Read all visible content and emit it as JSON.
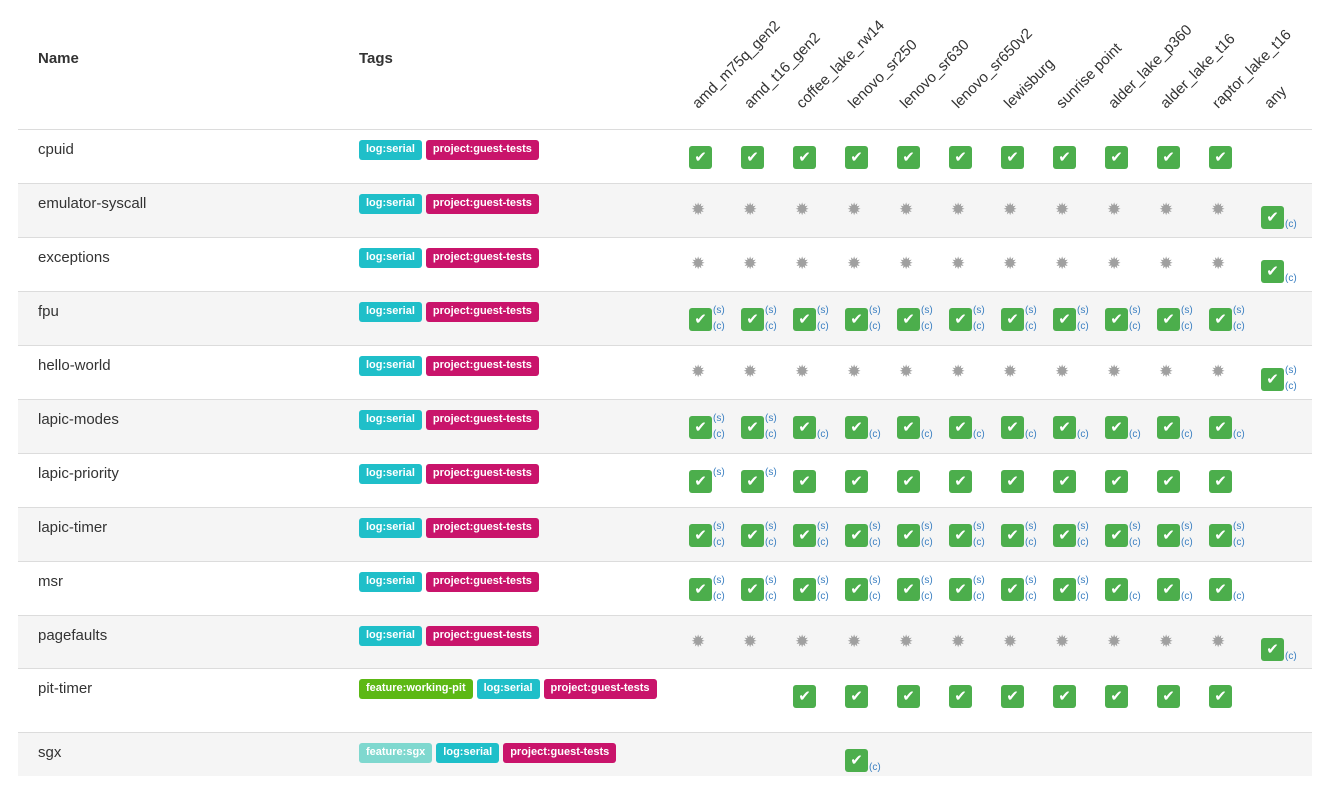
{
  "header": {
    "name_label": "Name",
    "tags_label": "Tags"
  },
  "machines": [
    "amd_m75q_gen2",
    "amd_t16_gen2",
    "coffee_lake_rw14",
    "lenovo_sr250",
    "lenovo_sr630",
    "lenovo_sr650v2",
    "lewisburg",
    "sunrise point",
    "alder_lake_p360",
    "alder_lake_t16",
    "raptor_lake_t16",
    "any"
  ],
  "tag_colors": {
    "log:serial": "#1fbfc9",
    "project:guest-tests": "#c9146b",
    "feature:working-pit": "#5cb814",
    "feature:sgx": "#7fd8cf"
  },
  "icons": {
    "check": "checkmark-icon",
    "gear": "gear-icon"
  },
  "status_legend": {
    "ok": "checked",
    "skip": "gear",
    "none": "empty"
  },
  "rows": [
    {
      "name": "cpuid",
      "tags": [
        "log:serial",
        "project:guest-tests"
      ],
      "cells": [
        "ok",
        "ok",
        "ok",
        "ok",
        "ok",
        "ok",
        "ok",
        "ok",
        "ok",
        "ok",
        "ok",
        "-"
      ]
    },
    {
      "name": "emulator-syscall",
      "tags": [
        "log:serial",
        "project:guest-tests"
      ],
      "cells": [
        "skip",
        "skip",
        "skip",
        "skip",
        "skip",
        "skip",
        "skip",
        "skip",
        "skip",
        "skip",
        "skip",
        "ok:c"
      ]
    },
    {
      "name": "exceptions",
      "tags": [
        "log:serial",
        "project:guest-tests"
      ],
      "cells": [
        "skip",
        "skip",
        "skip",
        "skip",
        "skip",
        "skip",
        "skip",
        "skip",
        "skip",
        "skip",
        "skip",
        "ok:c"
      ]
    },
    {
      "name": "fpu",
      "tags": [
        "log:serial",
        "project:guest-tests"
      ],
      "cells": [
        "ok:sc",
        "ok:sc",
        "ok:sc",
        "ok:sc",
        "ok:sc",
        "ok:sc",
        "ok:sc",
        "ok:sc",
        "ok:sc",
        "ok:sc",
        "ok:sc",
        "-"
      ]
    },
    {
      "name": "hello-world",
      "tags": [
        "log:serial",
        "project:guest-tests"
      ],
      "cells": [
        "skip",
        "skip",
        "skip",
        "skip",
        "skip",
        "skip",
        "skip",
        "skip",
        "skip",
        "skip",
        "skip",
        "ok:sc"
      ]
    },
    {
      "name": "lapic-modes",
      "tags": [
        "log:serial",
        "project:guest-tests"
      ],
      "cells": [
        "ok:sc",
        "ok:sc",
        "ok:c",
        "ok:c",
        "ok:c",
        "ok:c",
        "ok:c",
        "ok:c",
        "ok:c",
        "ok:c",
        "ok:c",
        "-"
      ]
    },
    {
      "name": "lapic-priority",
      "tags": [
        "log:serial",
        "project:guest-tests"
      ],
      "cells": [
        "ok:s",
        "ok:s",
        "ok",
        "ok",
        "ok",
        "ok",
        "ok",
        "ok",
        "ok",
        "ok",
        "ok",
        "-"
      ]
    },
    {
      "name": "lapic-timer",
      "tags": [
        "log:serial",
        "project:guest-tests"
      ],
      "cells": [
        "ok:sc",
        "ok:sc",
        "ok:sc",
        "ok:sc",
        "ok:sc",
        "ok:sc",
        "ok:sc",
        "ok:sc",
        "ok:sc",
        "ok:sc",
        "ok:sc",
        "-"
      ]
    },
    {
      "name": "msr",
      "tags": [
        "log:serial",
        "project:guest-tests"
      ],
      "cells": [
        "ok:sc",
        "ok:sc",
        "ok:sc",
        "ok:sc",
        "ok:sc",
        "ok:sc",
        "ok:sc",
        "ok:sc",
        "ok:c",
        "ok:c",
        "ok:c",
        "-"
      ]
    },
    {
      "name": "pagefaults",
      "tags": [
        "log:serial",
        "project:guest-tests"
      ],
      "cells": [
        "skip",
        "skip",
        "skip",
        "skip",
        "skip",
        "skip",
        "skip",
        "skip",
        "skip",
        "skip",
        "skip",
        "ok:c"
      ]
    },
    {
      "name": "pit-timer",
      "tags": [
        "feature:working-pit",
        "log:serial",
        "project:guest-tests"
      ],
      "cells": [
        "-",
        "-",
        "ok",
        "ok",
        "ok",
        "ok",
        "ok",
        "ok",
        "ok",
        "ok",
        "ok",
        "-"
      ]
    },
    {
      "name": "sgx",
      "tags": [
        "feature:sgx",
        "log:serial",
        "project:guest-tests"
      ],
      "cells": [
        "-",
        "-",
        "-",
        "ok:c",
        "-",
        "-",
        "-",
        "-",
        "-",
        "-",
        "-",
        "-"
      ]
    }
  ],
  "flags": {
    "s": "(s)",
    "c": "(c)"
  },
  "check_glyph": "✔",
  "gear_glyph": "✹"
}
